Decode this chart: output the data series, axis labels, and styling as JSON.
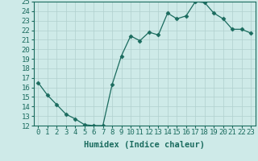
{
  "x": [
    0,
    1,
    2,
    3,
    4,
    5,
    6,
    7,
    8,
    9,
    10,
    11,
    12,
    13,
    14,
    15,
    16,
    17,
    18,
    19,
    20,
    21,
    22,
    23
  ],
  "y": [
    16.5,
    15.2,
    14.2,
    13.2,
    12.7,
    12.1,
    12.0,
    12.0,
    16.3,
    19.3,
    21.4,
    20.9,
    21.8,
    21.5,
    23.8,
    23.2,
    23.5,
    25.0,
    24.9,
    23.8,
    23.2,
    22.1,
    22.1,
    21.7
  ],
  "line_color": "#1a6b5e",
  "marker": "D",
  "marker_size": 2.5,
  "bg_color": "#ceeae8",
  "grid_color": "#b0d0ce",
  "xlabel": "Humidex (Indice chaleur)",
  "xlim": [
    -0.5,
    23.5
  ],
  "ylim": [
    12,
    25
  ],
  "xticks": [
    0,
    1,
    2,
    3,
    4,
    5,
    6,
    7,
    8,
    9,
    10,
    11,
    12,
    13,
    14,
    15,
    16,
    17,
    18,
    19,
    20,
    21,
    22,
    23
  ],
  "yticks": [
    12,
    13,
    14,
    15,
    16,
    17,
    18,
    19,
    20,
    21,
    22,
    23,
    24,
    25
  ],
  "tick_color": "#1a6b5e",
  "label_color": "#1a6b5e",
  "font_size": 6.5,
  "xlabel_fontsize": 7.5
}
